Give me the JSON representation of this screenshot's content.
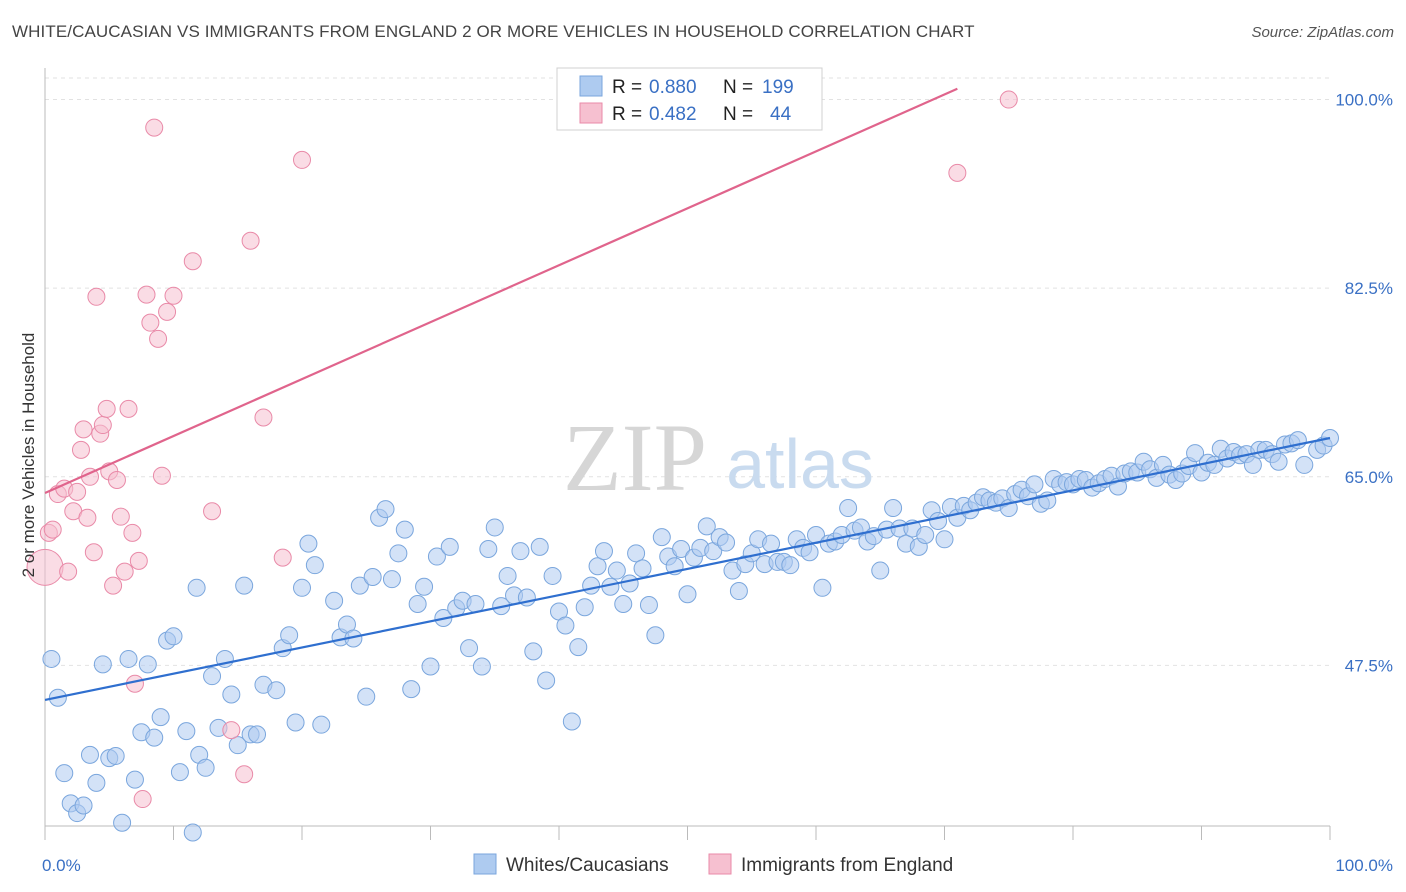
{
  "title": "WHITE/CAUCASIAN VS IMMIGRANTS FROM ENGLAND 2 OR MORE VEHICLES IN HOUSEHOLD CORRELATION CHART",
  "source": "Source: ZipAtlas.com",
  "watermark": {
    "zip": "ZIP",
    "atlas": "atlas"
  },
  "colors": {
    "blue_fill": "#aecbf0",
    "blue_stroke": "#7aa6dd",
    "blue_line": "#2f6fcf",
    "pink_fill": "#f6c0d0",
    "pink_stroke": "#e98aa8",
    "pink_line": "#e0648c",
    "tick_text": "#3a70c4",
    "grid": "#e2e2e2"
  },
  "legend": {
    "rows": [
      {
        "r_label": "R =",
        "r_value": "0.880",
        "n_label": "N =",
        "n_value": "199"
      },
      {
        "r_label": "R =",
        "r_value": "0.482",
        "n_label": "N =",
        "n_value": "44"
      }
    ]
  },
  "bottom_legend": [
    "Whites/Caucasians",
    "Immigrants from England"
  ],
  "chart_data": {
    "type": "scatter",
    "ylabel": "2 or more Vehicles in Household",
    "xlim": [
      0,
      100
    ],
    "ylim": [
      32.6,
      102
    ],
    "x_tick_labels": [
      {
        "value": 0,
        "label": "0.0%"
      },
      {
        "value": 100,
        "label": "100.0%"
      }
    ],
    "y_ticks": [
      {
        "value": 47.5,
        "label": "47.5%"
      },
      {
        "value": 65.0,
        "label": "65.0%"
      },
      {
        "value": 82.5,
        "label": "82.5%"
      },
      {
        "value": 100.0,
        "label": "100.0%"
      }
    ],
    "x_minor_ticks": [
      0,
      10,
      20,
      30,
      40,
      50,
      60,
      70,
      80,
      90,
      100
    ],
    "grid": true,
    "series": [
      {
        "name": "Whites/Caucasians",
        "trend": [
          [
            0,
            44.3
          ],
          [
            100,
            68.6
          ]
        ],
        "points": [
          [
            0.5,
            48.1
          ],
          [
            1.0,
            44.5
          ],
          [
            1.5,
            37.5
          ],
          [
            2.0,
            34.7
          ],
          [
            2.5,
            33.8
          ],
          [
            3.0,
            34.5
          ],
          [
            3.5,
            39.2
          ],
          [
            4.0,
            36.6
          ],
          [
            4.5,
            47.6
          ],
          [
            5.0,
            38.9
          ],
          [
            5.5,
            39.1
          ],
          [
            6.0,
            32.9
          ],
          [
            6.5,
            48.1
          ],
          [
            7.0,
            36.9
          ],
          [
            7.5,
            41.3
          ],
          [
            8.0,
            47.6
          ],
          [
            8.5,
            40.8
          ],
          [
            9.0,
            42.7
          ],
          [
            9.5,
            49.8
          ],
          [
            10.0,
            50.2
          ],
          [
            10.5,
            37.6
          ],
          [
            11.0,
            41.4
          ],
          [
            11.5,
            32.0
          ],
          [
            11.8,
            54.7
          ],
          [
            12.0,
            39.2
          ],
          [
            12.5,
            38.0
          ],
          [
            13.0,
            46.5
          ],
          [
            13.5,
            41.7
          ],
          [
            14.0,
            48.1
          ],
          [
            14.5,
            44.8
          ],
          [
            15.0,
            40.1
          ],
          [
            15.5,
            54.9
          ],
          [
            16.0,
            41.1
          ],
          [
            16.5,
            41.1
          ],
          [
            17.0,
            45.7
          ],
          [
            18.0,
            45.2
          ],
          [
            18.5,
            49.1
          ],
          [
            19.0,
            50.3
          ],
          [
            19.5,
            42.2
          ],
          [
            20.0,
            54.7
          ],
          [
            20.5,
            58.8
          ],
          [
            21.0,
            56.8
          ],
          [
            21.5,
            42.0
          ],
          [
            22.5,
            53.5
          ],
          [
            23.0,
            50.1
          ],
          [
            23.5,
            51.3
          ],
          [
            24.0,
            50.0
          ],
          [
            24.5,
            54.9
          ],
          [
            25.0,
            44.6
          ],
          [
            25.5,
            55.7
          ],
          [
            26.0,
            61.2
          ],
          [
            26.5,
            62.0
          ],
          [
            27.0,
            55.5
          ],
          [
            27.5,
            57.9
          ],
          [
            28.0,
            60.1
          ],
          [
            28.5,
            45.3
          ],
          [
            29.0,
            53.2
          ],
          [
            29.5,
            54.8
          ],
          [
            30.0,
            47.4
          ],
          [
            30.5,
            57.6
          ],
          [
            31.0,
            51.9
          ],
          [
            31.5,
            58.5
          ],
          [
            32.0,
            52.8
          ],
          [
            32.5,
            53.5
          ],
          [
            33.0,
            49.1
          ],
          [
            33.5,
            53.2
          ],
          [
            34.0,
            47.4
          ],
          [
            34.5,
            58.3
          ],
          [
            35.0,
            60.3
          ],
          [
            35.5,
            53.0
          ],
          [
            36.0,
            55.8
          ],
          [
            36.5,
            54.0
          ],
          [
            37.0,
            58.1
          ],
          [
            37.5,
            53.8
          ],
          [
            38.0,
            48.8
          ],
          [
            38.5,
            58.5
          ],
          [
            39.0,
            46.1
          ],
          [
            39.5,
            55.8
          ],
          [
            40.0,
            52.5
          ],
          [
            40.5,
            51.2
          ],
          [
            41.0,
            42.3
          ],
          [
            41.5,
            49.2
          ],
          [
            42.0,
            52.9
          ],
          [
            42.5,
            54.9
          ],
          [
            43.0,
            56.7
          ],
          [
            43.5,
            58.1
          ],
          [
            44.0,
            54.8
          ],
          [
            44.5,
            56.3
          ],
          [
            45.0,
            53.2
          ],
          [
            45.5,
            55.1
          ],
          [
            46.0,
            57.9
          ],
          [
            46.5,
            56.5
          ],
          [
            47.0,
            53.1
          ],
          [
            47.5,
            50.3
          ],
          [
            48.0,
            59.4
          ],
          [
            48.5,
            57.6
          ],
          [
            49.0,
            56.7
          ],
          [
            49.5,
            58.3
          ],
          [
            50.0,
            54.1
          ],
          [
            50.5,
            57.5
          ],
          [
            51.0,
            58.4
          ],
          [
            51.5,
            60.4
          ],
          [
            52.0,
            58.1
          ],
          [
            52.5,
            59.4
          ],
          [
            53.0,
            58.9
          ],
          [
            53.5,
            56.3
          ],
          [
            54.0,
            54.4
          ],
          [
            54.5,
            56.9
          ],
          [
            55.0,
            57.9
          ],
          [
            55.5,
            59.2
          ],
          [
            56.0,
            56.9
          ],
          [
            56.5,
            58.8
          ],
          [
            57.0,
            57.1
          ],
          [
            57.5,
            57.1
          ],
          [
            58.0,
            56.8
          ],
          [
            58.5,
            59.2
          ],
          [
            59.0,
            58.4
          ],
          [
            59.5,
            58.0
          ],
          [
            60.0,
            59.6
          ],
          [
            60.5,
            54.7
          ],
          [
            61.0,
            58.8
          ],
          [
            61.5,
            59.0
          ],
          [
            62.0,
            59.6
          ],
          [
            62.5,
            62.1
          ],
          [
            63.0,
            60.0
          ],
          [
            63.5,
            60.3
          ],
          [
            64.0,
            59.0
          ],
          [
            64.5,
            59.5
          ],
          [
            65.0,
            56.3
          ],
          [
            65.5,
            60.1
          ],
          [
            66.0,
            62.1
          ],
          [
            66.5,
            60.2
          ],
          [
            67.0,
            58.8
          ],
          [
            67.5,
            60.2
          ],
          [
            68.0,
            58.5
          ],
          [
            68.5,
            59.6
          ],
          [
            69.0,
            61.9
          ],
          [
            69.5,
            60.9
          ],
          [
            70.0,
            59.2
          ],
          [
            70.5,
            62.2
          ],
          [
            71.0,
            61.2
          ],
          [
            71.5,
            62.3
          ],
          [
            72.0,
            61.9
          ],
          [
            72.5,
            62.6
          ],
          [
            73.0,
            63.1
          ],
          [
            73.5,
            62.8
          ],
          [
            74.0,
            62.6
          ],
          [
            74.5,
            63.0
          ],
          [
            75.0,
            62.1
          ],
          [
            75.5,
            63.4
          ],
          [
            76.0,
            63.8
          ],
          [
            76.5,
            63.2
          ],
          [
            77.0,
            64.3
          ],
          [
            77.5,
            62.5
          ],
          [
            78.0,
            62.8
          ],
          [
            78.5,
            64.8
          ],
          [
            79.0,
            64.3
          ],
          [
            79.5,
            64.5
          ],
          [
            80.0,
            64.3
          ],
          [
            80.5,
            64.8
          ],
          [
            81.0,
            64.7
          ],
          [
            81.5,
            64.0
          ],
          [
            82.0,
            64.4
          ],
          [
            82.5,
            64.8
          ],
          [
            83.0,
            65.1
          ],
          [
            83.5,
            64.1
          ],
          [
            84.0,
            65.3
          ],
          [
            84.5,
            65.5
          ],
          [
            85.0,
            65.4
          ],
          [
            85.5,
            66.4
          ],
          [
            86.0,
            65.7
          ],
          [
            86.5,
            64.9
          ],
          [
            87.0,
            66.1
          ],
          [
            87.5,
            65.2
          ],
          [
            88.0,
            64.7
          ],
          [
            88.5,
            65.3
          ],
          [
            89.0,
            66.0
          ],
          [
            89.5,
            67.2
          ],
          [
            90.0,
            65.4
          ],
          [
            90.5,
            66.3
          ],
          [
            91.0,
            66.1
          ],
          [
            91.5,
            67.6
          ],
          [
            92.0,
            66.7
          ],
          [
            92.5,
            67.3
          ],
          [
            93.0,
            67.0
          ],
          [
            93.5,
            67.1
          ],
          [
            94.0,
            66.1
          ],
          [
            94.5,
            67.5
          ],
          [
            95.0,
            67.5
          ],
          [
            95.5,
            67.1
          ],
          [
            96.0,
            66.4
          ],
          [
            96.5,
            68.0
          ],
          [
            97.0,
            68.1
          ],
          [
            97.5,
            68.4
          ],
          [
            98.0,
            66.1
          ],
          [
            99.0,
            67.5
          ],
          [
            99.5,
            67.9
          ],
          [
            100.0,
            68.6
          ]
        ]
      },
      {
        "name": "Immigrants from England",
        "trend": [
          [
            0,
            63.5
          ],
          [
            71,
            101.0
          ]
        ],
        "points": [
          [
            0.0,
            56.6
          ],
          [
            0.3,
            59.8
          ],
          [
            0.6,
            60.1
          ],
          [
            1.0,
            63.4
          ],
          [
            1.5,
            63.9
          ],
          [
            1.8,
            56.2
          ],
          [
            2.2,
            61.8
          ],
          [
            2.5,
            63.6
          ],
          [
            2.8,
            67.5
          ],
          [
            3.0,
            69.4
          ],
          [
            3.3,
            61.2
          ],
          [
            3.5,
            65.0
          ],
          [
            3.8,
            58.0
          ],
          [
            4.0,
            81.7
          ],
          [
            4.3,
            69.0
          ],
          [
            4.5,
            69.8
          ],
          [
            4.8,
            71.3
          ],
          [
            5.0,
            65.5
          ],
          [
            5.3,
            54.9
          ],
          [
            5.6,
            64.7
          ],
          [
            5.9,
            61.3
          ],
          [
            6.2,
            56.2
          ],
          [
            6.5,
            71.3
          ],
          [
            6.8,
            59.8
          ],
          [
            7.0,
            45.8
          ],
          [
            7.3,
            57.2
          ],
          [
            7.6,
            35.1
          ],
          [
            7.9,
            81.9
          ],
          [
            8.2,
            79.3
          ],
          [
            8.5,
            97.4
          ],
          [
            8.8,
            77.8
          ],
          [
            9.1,
            65.1
          ],
          [
            9.5,
            80.3
          ],
          [
            10.0,
            81.8
          ],
          [
            11.5,
            85.0
          ],
          [
            13.0,
            61.8
          ],
          [
            14.5,
            41.5
          ],
          [
            15.5,
            37.4
          ],
          [
            16.0,
            86.9
          ],
          [
            17.0,
            70.5
          ],
          [
            18.5,
            57.5
          ],
          [
            20.0,
            94.4
          ],
          [
            71.0,
            93.2
          ],
          [
            75.0,
            100.0
          ]
        ]
      }
    ]
  }
}
